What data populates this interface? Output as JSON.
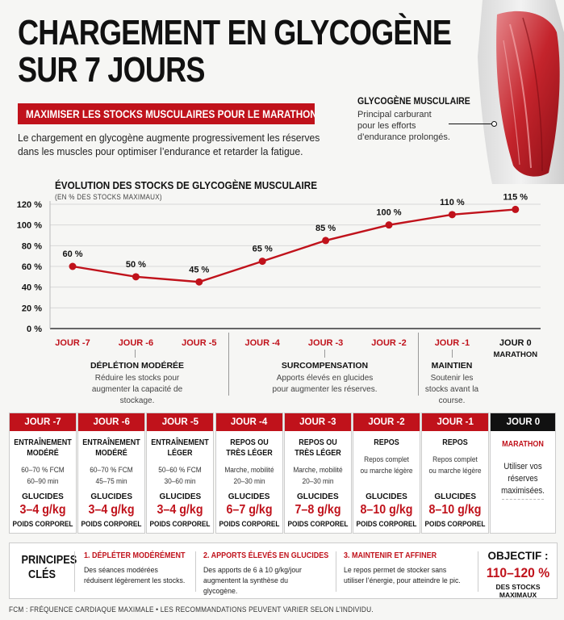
{
  "header": {
    "title_line1": "CHARGEMENT EN GLYCOGÈNE",
    "title_line2": "SUR 7 JOURS",
    "subtitle": "MAXIMISER LES STOCKS MUSCULAIRES POUR LE MARATHON",
    "intro": "Le chargement en glycogène augmente progressivement les réserves dans les muscles pour optimiser l’endurance et retarder la fatigue."
  },
  "muscle": {
    "title": "GLYCOGÈNE MUSCULAIRE",
    "desc": "Principal carburant pour les efforts d’endurance prolongés."
  },
  "colors": {
    "accent": "#c0121b",
    "dark": "#111111",
    "grid": "#d8d8d8"
  },
  "chart_data": {
    "type": "line",
    "title": "ÉVOLUTION DES STOCKS DE GLYCOGÈNE MUSCULAIRE",
    "subtitle": "(EN % DES STOCKS MAXIMAUX)",
    "categories": [
      "JOUR -7",
      "JOUR -6",
      "JOUR -5",
      "JOUR -4",
      "JOUR -3",
      "JOUR -2",
      "JOUR -1",
      "JOUR 0"
    ],
    "category_note": "MARATHON",
    "values": [
      60,
      50,
      45,
      65,
      85,
      100,
      110,
      115
    ],
    "value_labels": [
      "60 %",
      "50 %",
      "45 %",
      "65 %",
      "85 %",
      "100 %",
      "110 %",
      "115 %"
    ],
    "yticks": [
      "0 %",
      "20 %",
      "40 %",
      "60 %",
      "80 %",
      "100 %",
      "120 %"
    ],
    "ylim": [
      0,
      120
    ],
    "grid": true
  },
  "phases": [
    {
      "title": "DÉPLÉTION MODÉRÉE",
      "desc": "Réduire les stocks pour augmenter la capacité de stockage."
    },
    {
      "title": "SURCOMPENSATION",
      "desc": "Apports élevés en glucides pour augmenter les réserves."
    },
    {
      "title": "MAINTIEN",
      "desc": "Soutenir les stocks avant la course."
    }
  ],
  "cards": [
    {
      "day": "JOUR -7",
      "activity": "ENTRAÎNEMENT MODÉRÉ",
      "detail": "60–70 % FCM\n60–90 min",
      "glucides": "GLUCIDES",
      "value": "3–4 g/kg",
      "unit": "POIDS CORPOREL"
    },
    {
      "day": "JOUR -6",
      "activity": "ENTRAÎNEMENT MODÉRÉ",
      "detail": "60–70 % FCM\n45–75 min",
      "glucides": "GLUCIDES",
      "value": "3–4 g/kg",
      "unit": "POIDS CORPOREL"
    },
    {
      "day": "JOUR -5",
      "activity": "ENTRAÎNEMENT LÉGER",
      "detail": "50–60 % FCM\n30–60 min",
      "glucides": "GLUCIDES",
      "value": "3–4 g/kg",
      "unit": "POIDS CORPOREL"
    },
    {
      "day": "JOUR -4",
      "activity": "REPOS OU TRÈS LÉGER",
      "detail": "Marche, mobilité\n20–30 min",
      "glucides": "GLUCIDES",
      "value": "6–7 g/kg",
      "unit": "POIDS CORPOREL"
    },
    {
      "day": "JOUR -3",
      "activity": "REPOS OU TRÈS LÉGER",
      "detail": "Marche, mobilité\n20–30 min",
      "glucides": "GLUCIDES",
      "value": "7–8 g/kg",
      "unit": "POIDS CORPOREL"
    },
    {
      "day": "JOUR -2",
      "activity": "REPOS",
      "detail": "Repos complet\nou marche légère",
      "glucides": "GLUCIDES",
      "value": "8–10 g/kg",
      "unit": "POIDS CORPOREL"
    },
    {
      "day": "JOUR -1",
      "activity": "REPOS",
      "detail": "Repos complet\nou marche légère",
      "glucides": "GLUCIDES",
      "value": "8–10 g/kg",
      "unit": "POIDS CORPOREL"
    }
  ],
  "final_card": {
    "day": "JOUR 0",
    "activity": "MARATHON",
    "detail": "Utiliser vos réserves maximisées."
  },
  "principles": {
    "heading": "PRINCIPES CLÉS",
    "items": [
      {
        "title": "1. DÉPLÉTER MODÉRÉMENT",
        "desc": "Des séances modérées réduisent légèrement les stocks."
      },
      {
        "title": "2. APPORTS ÉLEVÉS EN GLUCIDES",
        "desc": "Des apports de 6 à 10 g/kg/jour augmentent la synthèse du glycogène."
      },
      {
        "title": "3. MAINTENIR ET AFFINER",
        "desc": "Le repos permet de stocker sans utiliser l’énergie, pour atteindre le pic."
      }
    ],
    "objective_label": "OBJECTIF :",
    "objective_value": "110–120 %",
    "objective_note": "DES STOCKS MAXIMAUX"
  },
  "footnote": "FCM : FRÉQUENCE CARDIAQUE MAXIMALE  •  LES RECOMMANDATIONS PEUVENT VARIER SELON L’INDIVIDU."
}
